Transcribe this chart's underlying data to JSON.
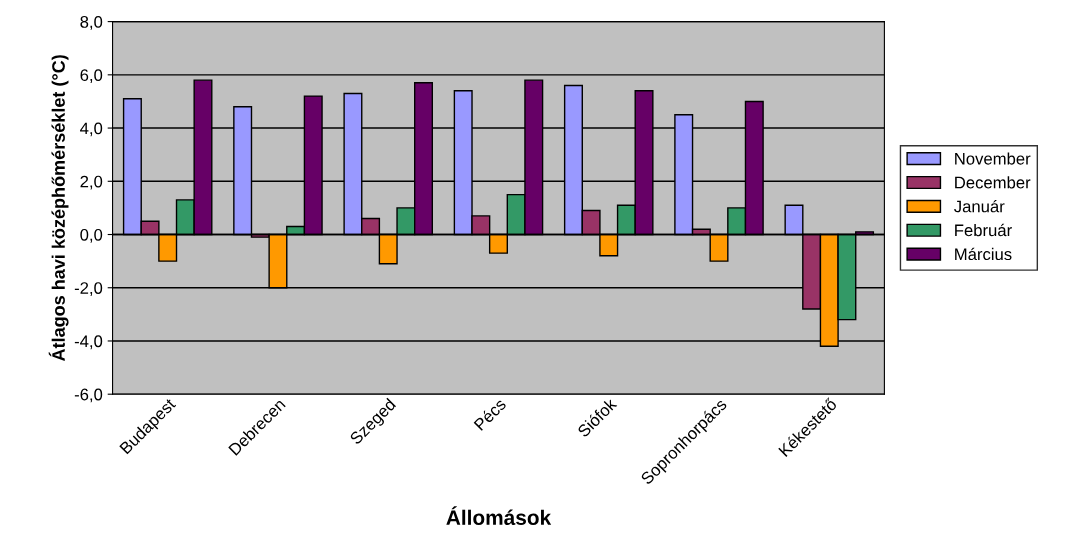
{
  "chart_data": {
    "type": "bar",
    "xlabel": "Állomások",
    "ylabel": "Átlagos havi középhőmérséklet (°C)",
    "categories": [
      "Budapest",
      "Debrecen",
      "Szeged",
      "Pécs",
      "Siófok",
      "Sopronhorpács",
      "Kékestető"
    ],
    "series": [
      {
        "name": "November",
        "color": "#9999ff",
        "values": [
          5.1,
          4.8,
          5.3,
          5.4,
          5.6,
          4.5,
          1.1
        ]
      },
      {
        "name": "December",
        "color": "#993366",
        "values": [
          0.5,
          -0.1,
          0.6,
          0.7,
          0.9,
          0.2,
          -2.8
        ]
      },
      {
        "name": "Január",
        "color": "#ff9900",
        "values": [
          -1.0,
          -2.0,
          -1.1,
          -0.7,
          -0.8,
          -1.0,
          -4.2
        ]
      },
      {
        "name": "Február",
        "color": "#339966",
        "values": [
          1.3,
          0.3,
          1.0,
          1.5,
          1.1,
          1.0,
          -3.2
        ]
      },
      {
        "name": "Március",
        "color": "#660066",
        "values": [
          5.8,
          5.2,
          5.7,
          5.8,
          5.4,
          5.0,
          0.1
        ]
      }
    ],
    "ylim": [
      -6,
      8
    ],
    "yticks": [
      {
        "value": -6,
        "label": "-6,0"
      },
      {
        "value": -4,
        "label": "-4,0"
      },
      {
        "value": -2,
        "label": "-2,0"
      },
      {
        "value": 0,
        "label": "0,0"
      },
      {
        "value": 2,
        "label": "2,0"
      },
      {
        "value": 4,
        "label": "4,0"
      },
      {
        "value": 6,
        "label": "6,0"
      },
      {
        "value": 8,
        "label": "8,0"
      }
    ],
    "grid": "y",
    "legend": "right"
  }
}
